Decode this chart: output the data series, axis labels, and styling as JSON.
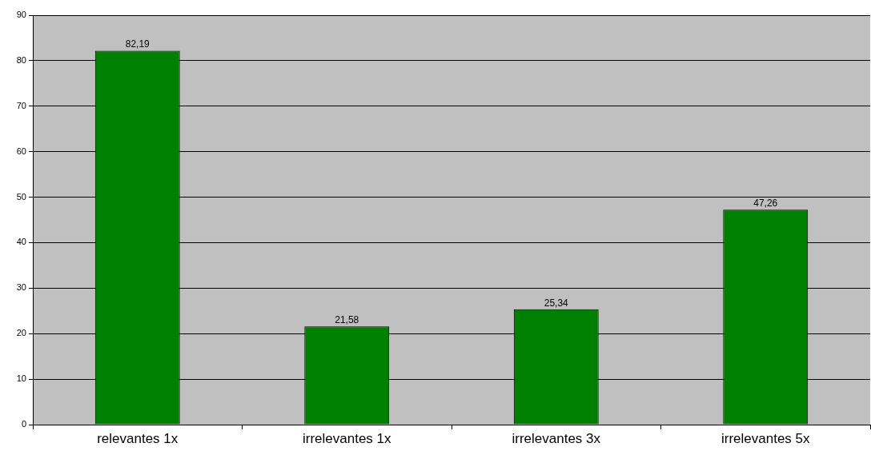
{
  "chart_data": {
    "type": "bar",
    "categories": [
      "relevantes 1x",
      "irrelevantes 1x",
      "irrelevantes 3x",
      "irrelevantes 5x"
    ],
    "values": [
      82.19,
      21.58,
      25.34,
      47.26
    ],
    "value_labels": [
      "82,19",
      "21,58",
      "25,34",
      "47,26"
    ],
    "color": "#008000",
    "ylim": [
      0,
      90
    ],
    "yticks": [
      0,
      10,
      20,
      30,
      40,
      50,
      60,
      70,
      80,
      90
    ],
    "grid": "y",
    "legend": false
  }
}
